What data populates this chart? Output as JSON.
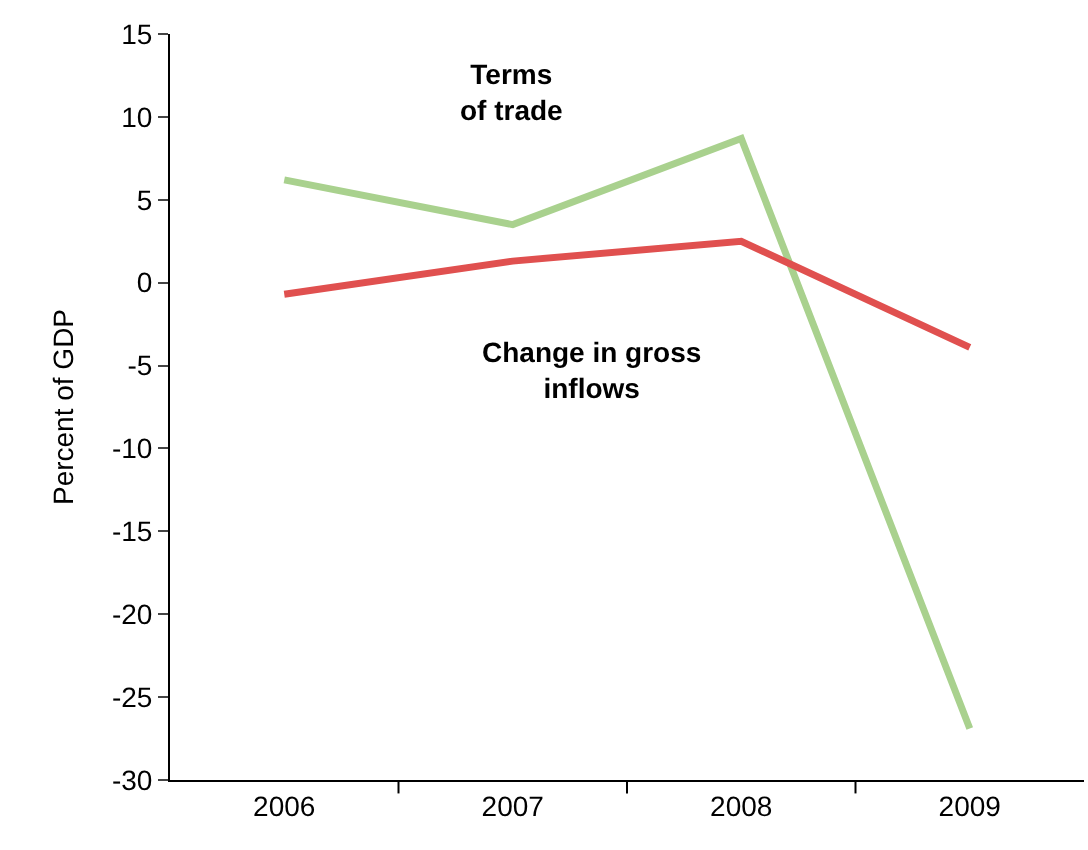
{
  "chart_data": {
    "type": "line",
    "ylabel": "Percent of GDP",
    "categories": [
      "2006",
      "2007",
      "2008",
      "2009"
    ],
    "series": [
      {
        "name": "Terms\nof trade",
        "color": "#a9d18e",
        "values": [
          6.2,
          3.5,
          8.7,
          -26.9
        ]
      },
      {
        "name": "Change in gross\ninflows",
        "color": "#e0504f",
        "values": [
          -0.7,
          1.3,
          2.5,
          -3.9
        ]
      }
    ],
    "ylim": [
      -30,
      15
    ],
    "yticks": [
      -30,
      -25,
      -20,
      -15,
      -10,
      -5,
      0,
      5,
      10,
      15
    ],
    "legend": false,
    "marker": "none",
    "line_style": "solid"
  }
}
